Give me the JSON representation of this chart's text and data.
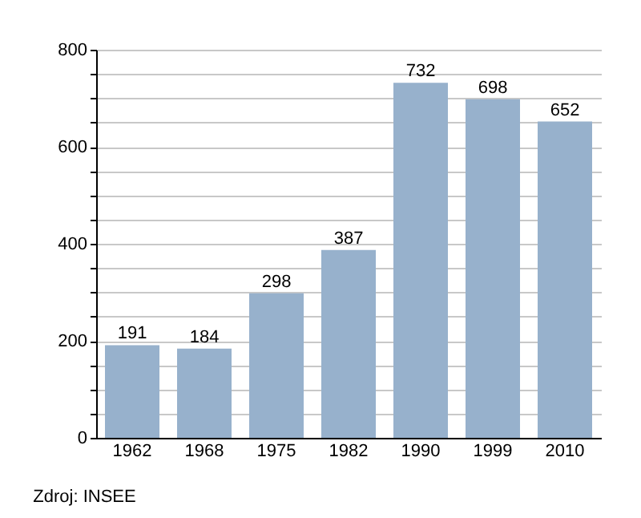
{
  "chart_data": {
    "type": "bar",
    "categories": [
      "1962",
      "1968",
      "1975",
      "1982",
      "1990",
      "1999",
      "2010"
    ],
    "values": [
      191,
      184,
      298,
      387,
      732,
      698,
      652
    ],
    "color": "#97b1cc",
    "data_labels": true,
    "ylim": [
      0,
      800
    ],
    "yticks": [
      0,
      {
        "value": 50,
        "label": null
      },
      {
        "value": 100,
        "label": null
      },
      {
        "value": 150,
        "label": null
      },
      200,
      {
        "value": 250,
        "label": null
      },
      {
        "value": 300,
        "label": null
      },
      {
        "value": 350,
        "label": null
      },
      400,
      {
        "value": 450,
        "label": null
      },
      {
        "value": 500,
        "label": null
      },
      {
        "value": 550,
        "label": null
      },
      600,
      {
        "value": 650,
        "label": null
      },
      {
        "value": 700,
        "label": null
      },
      {
        "value": 750,
        "label": null
      },
      800
    ],
    "grid": true,
    "annotations": [
      "Zdroj: INSEE"
    ]
  }
}
